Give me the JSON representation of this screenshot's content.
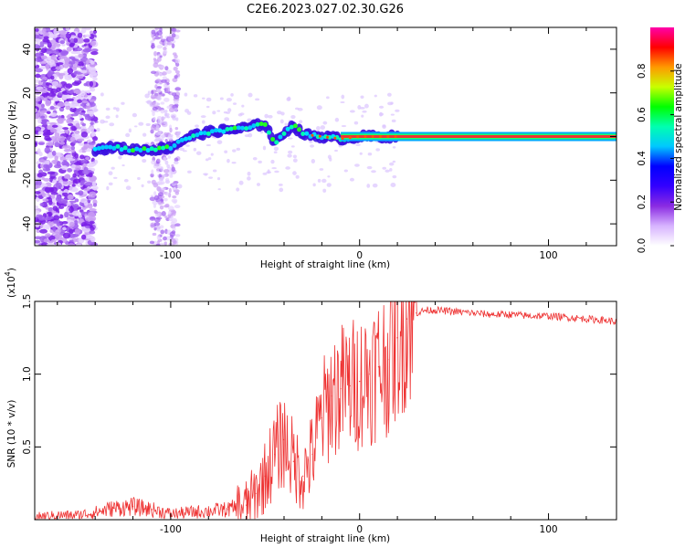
{
  "title": "C2E6.2023.027.02.30.G26",
  "chart_data": [
    {
      "type": "heatmap",
      "xlabel": "Height of straight line (km)",
      "ylabel": "Frequency (Hz)",
      "xlim": [
        -172,
        136
      ],
      "ylim": [
        -50,
        50
      ],
      "x_ticks": [
        -100,
        0,
        100
      ],
      "x_tick_labels": [
        "-100",
        "0",
        "100"
      ],
      "y_ticks": [
        -40,
        -20,
        0,
        20,
        40
      ],
      "y_tick_labels": [
        "-40",
        "-20",
        "0",
        "20",
        "40"
      ],
      "grid": false,
      "ridge": {
        "x": [
          -140,
          -130,
          -120,
          -110,
          -100,
          -90,
          -80,
          -70,
          -60,
          -50,
          -45,
          -40,
          -35,
          -30,
          -20,
          -10,
          0,
          10,
          20,
          136
        ],
        "y": [
          -6,
          -5,
          -6,
          -6,
          -5,
          0,
          2,
          3,
          4,
          6,
          -3,
          2,
          5,
          1,
          0,
          -1,
          0,
          0,
          0,
          0
        ]
      },
      "colorbar": {
        "label": "Normalized spectral amplitude",
        "range": [
          0,
          1
        ],
        "ticks": [
          0.0,
          0.2,
          0.4,
          0.6,
          0.8
        ],
        "tick_labels": [
          "0.0",
          "0.2",
          "0.4",
          "0.6",
          "0.8"
        ],
        "colors": [
          "#ffffff",
          "#d7b3ff",
          "#8a2be2",
          "#3300ff",
          "#0000ff",
          "#00c8ff",
          "#00ffb0",
          "#00ff00",
          "#c8ff00",
          "#ff9900",
          "#ff0000",
          "#ff00aa"
        ]
      }
    },
    {
      "type": "line",
      "xlabel": "Height of straight line (km)",
      "ylabel": "SNR (10 * v/v)",
      "y_multiplier": "(x10",
      "y_multiplier_exp": "4",
      "y_multiplier_close": ")",
      "xlim": [
        -172,
        136
      ],
      "ylim": [
        0,
        1.5
      ],
      "x_ticks": [
        -100,
        0,
        100
      ],
      "x_tick_labels": [
        "-100",
        "0",
        "100"
      ],
      "y_ticks": [
        0.5,
        1.0,
        1.5
      ],
      "y_tick_labels": [
        "0.5",
        "1.0",
        "1.5"
      ],
      "grid": false,
      "color": "#ee3333",
      "series": [
        {
          "x": [
            -172,
            -160,
            -150,
            -140,
            -130,
            -120,
            -110,
            -100,
            -90,
            -80,
            -70,
            -60,
            -55,
            -50,
            -45,
            -40,
            -35,
            -30,
            -25,
            -20,
            -15,
            -10,
            -5,
            0,
            5,
            10,
            15,
            20,
            25,
            30,
            35,
            40,
            50,
            60,
            70,
            80,
            90,
            100,
            110,
            120,
            130,
            136
          ],
          "y": [
            0.02,
            0.03,
            0.03,
            0.05,
            0.08,
            0.09,
            0.07,
            0.04,
            0.05,
            0.06,
            0.07,
            0.1,
            0.18,
            0.3,
            0.45,
            0.55,
            0.4,
            0.3,
            0.45,
            0.7,
            0.85,
            0.9,
            0.92,
            0.95,
            1.0,
            1.05,
            1.1,
            1.25,
            1.38,
            1.42,
            1.44,
            1.44,
            1.43,
            1.42,
            1.41,
            1.41,
            1.4,
            1.4,
            1.39,
            1.38,
            1.37,
            1.36
          ]
        }
      ]
    }
  ]
}
